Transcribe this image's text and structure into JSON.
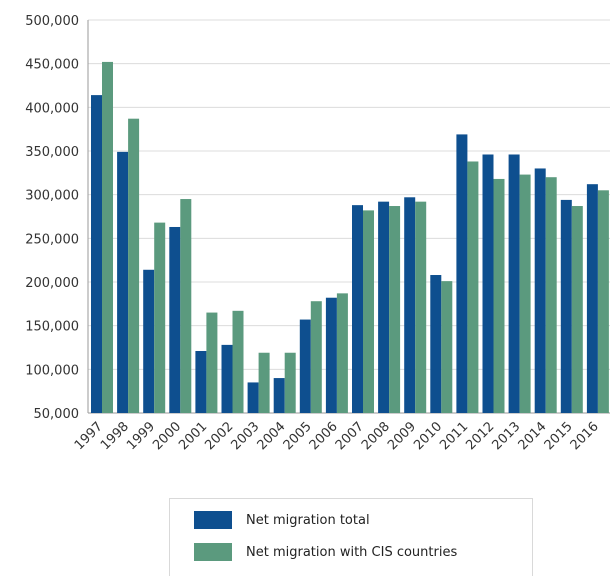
{
  "chart_data": {
    "type": "bar",
    "categories": [
      "1997",
      "1998",
      "1999",
      "2000",
      "2001",
      "2002",
      "2003",
      "2004",
      "2005",
      "2006",
      "2007",
      "2008",
      "2009",
      "2010",
      "2011",
      "2012",
      "2013",
      "2014",
      "2015",
      "2016"
    ],
    "series": [
      {
        "name": "Net migration total",
        "color": "#0e4f8f",
        "values": [
          414000,
          349000,
          214000,
          263000,
          121000,
          128000,
          85000,
          90000,
          157000,
          182000,
          288000,
          292000,
          297000,
          208000,
          369000,
          346000,
          346000,
          330000,
          294000,
          312000
        ]
      },
      {
        "name": "Net migration with CIS countries",
        "color": "#5b9a7e",
        "values": [
          452000,
          387000,
          268000,
          295000,
          165000,
          167000,
          119000,
          119000,
          178000,
          187000,
          282000,
          287000,
          292000,
          201000,
          338000,
          318000,
          323000,
          320000,
          287000,
          305000
        ]
      }
    ],
    "ylim": [
      50000,
      500000
    ],
    "yticks": [
      50000,
      100000,
      150000,
      200000,
      250000,
      300000,
      350000,
      400000,
      450000,
      500000
    ],
    "ytick_labels": [
      "50,000",
      "100,000",
      "150,000",
      "200,000",
      "250,000",
      "300,000",
      "350,000",
      "400,000",
      "450,000",
      "500,000"
    ],
    "grid": true,
    "legend_position": "bottom"
  }
}
